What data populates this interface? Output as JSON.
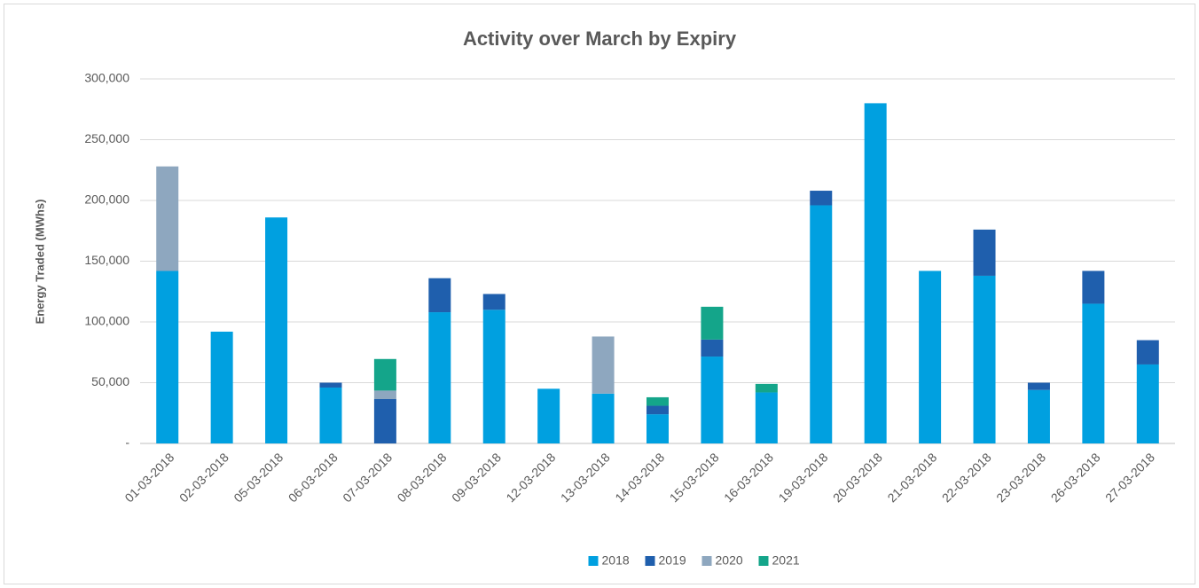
{
  "chart_data": {
    "type": "stacked_bar",
    "title": "Activity over March by Expiry",
    "y_label": "Energy Traded (MWhs)",
    "categories": [
      "01-03-2018",
      "02-03-2018",
      "05-03-2018",
      "06-03-2018",
      "07-03-2018",
      "08-03-2018",
      "09-03-2018",
      "12-03-2018",
      "13-03-2018",
      "14-03-2018",
      "15-03-2018",
      "16-03-2018",
      "19-03-2018",
      "20-03-2018",
      "21-03-2018",
      "22-03-2018",
      "23-03-2018",
      "26-03-2018",
      "27-03-2018"
    ],
    "series": [
      {
        "name": "2018",
        "color": "#00a0e0",
        "values": [
          142000,
          92000,
          186000,
          46000,
          null,
          108000,
          110000,
          45000,
          41000,
          24000,
          71500,
          42000,
          196000,
          280000,
          142000,
          138000,
          44000,
          115000,
          65000
        ]
      },
      {
        "name": "2019",
        "color": "#1f5fad",
        "values": [
          null,
          null,
          null,
          4000,
          36500,
          28000,
          13000,
          null,
          null,
          7000,
          14000,
          null,
          12000,
          null,
          null,
          38000,
          6000,
          27000,
          20000
        ]
      },
      {
        "name": "2020",
        "color": "#8ea7bf",
        "values": [
          86000,
          null,
          null,
          null,
          7000,
          null,
          null,
          null,
          47000,
          null,
          null,
          null,
          null,
          null,
          null,
          null,
          null,
          null,
          null
        ]
      },
      {
        "name": "2021",
        "color": "#14a58a",
        "values": [
          null,
          null,
          null,
          null,
          26000,
          null,
          null,
          null,
          null,
          7000,
          27000,
          7000,
          null,
          null,
          null,
          null,
          null,
          null,
          null
        ]
      }
    ],
    "ylim": [
      0,
      300000
    ],
    "yticks": [
      {
        "value": 0,
        "label": "-"
      },
      {
        "value": 50000,
        "label": "50,000"
      },
      {
        "value": 100000,
        "label": "100,000"
      },
      {
        "value": 150000,
        "label": "150,000"
      },
      {
        "value": 200000,
        "label": "200,000"
      },
      {
        "value": 250000,
        "label": "250,000"
      },
      {
        "value": 300000,
        "label": "300,000"
      }
    ],
    "grid": true,
    "legend": "bottom"
  }
}
